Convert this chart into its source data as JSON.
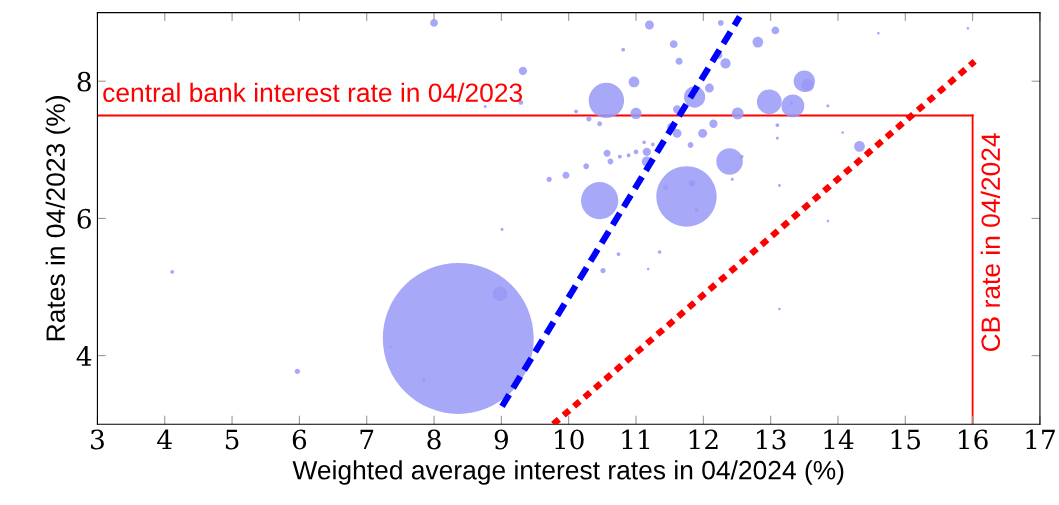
{
  "chart_data": {
    "type": "bubble",
    "xlabel": "Weighted average interest rates in 04/2024 (%)",
    "ylabel": "Rates in 04/2023 (%)",
    "xlim": [
      3,
      17
    ],
    "ylim": [
      3,
      9
    ],
    "xticks": [
      3,
      4,
      5,
      6,
      7,
      8,
      9,
      10,
      11,
      12,
      13,
      14,
      15,
      16,
      17
    ],
    "yticks": [
      4,
      6,
      8
    ],
    "grid": false,
    "ref_lines": [
      {
        "axis": "y",
        "value": 7.5,
        "label": "central bank interest rate in 04/2023",
        "color": "#ff0000",
        "line_style": "solid"
      },
      {
        "axis": "x",
        "value": 16,
        "label": "CB rate in 04/2024",
        "color": "#ff0000",
        "line_style": "solid"
      }
    ],
    "series": [
      {
        "color": "#9999f7",
        "x": [
          8.36,
          11.75,
          10.46,
          10.56,
          12.39,
          12.98,
          13.33,
          13.5,
          13.55,
          11.87,
          8.98,
          12.51,
          11.2,
          11.56,
          11.64,
          12.81,
          13.07,
          12.26,
          12.33,
          12.23,
          12.09,
          10.97,
          11.0,
          11.61,
          12.15,
          11.99,
          11.53,
          11.61,
          11.81,
          11.16,
          11.16,
          10.57,
          10.62,
          10.26,
          9.96,
          9.71,
          14.32,
          9.32,
          9.29,
          8.0,
          10.51,
          10.74,
          11.35,
          11.83,
          11.44,
          11.9,
          13.1,
          13.1,
          13.13,
          13.85,
          13.31,
          12.57,
          12.43,
          10.89,
          10.76,
          11.0,
          11.25,
          11.12,
          10.46,
          10.3,
          10.11,
          10.81,
          14.6,
          13.85,
          14.07,
          8.76,
          9.01,
          11.18,
          5.97,
          4.11,
          7.36,
          7.85,
          13.13,
          15.93
        ],
        "values": [
          4.25,
          6.32,
          6.26,
          7.72,
          6.83,
          7.7,
          7.64,
          8.0,
          7.94,
          7.77,
          4.9,
          7.53,
          8.82,
          8.54,
          8.29,
          8.57,
          8.74,
          8.85,
          8.26,
          8.38,
          7.9,
          7.99,
          7.53,
          7.59,
          7.38,
          7.24,
          7.33,
          7.24,
          7.07,
          6.97,
          6.83,
          6.95,
          6.83,
          6.76,
          6.63,
          6.57,
          7.05,
          8.15,
          7.69,
          8.85,
          5.24,
          5.48,
          5.51,
          6.51,
          6.45,
          6.12,
          7.36,
          7.17,
          6.48,
          7.64,
          7.68,
          6.9,
          6.57,
          6.92,
          6.9,
          6.97,
          7.08,
          7.11,
          7.38,
          7.45,
          7.56,
          8.46,
          8.7,
          5.96,
          7.25,
          7.63,
          5.84,
          5.26,
          3.77,
          5.22,
          4.13,
          3.64,
          4.68,
          8.77
        ],
        "sizes": [
          1,
          0.16,
          0.061,
          0.055,
          0.031,
          0.027,
          0.023,
          0.02,
          0.0068,
          0.02,
          0.0089,
          0.0062,
          0.0035,
          0.0026,
          0.0022,
          0.005,
          0.0026,
          0.0015,
          0.0045,
          0.0022,
          0.0035,
          0.005,
          0.0055,
          0.003,
          0.003,
          0.0035,
          0.0035,
          0.0035,
          0.0015,
          0.003,
          0.0045,
          0.0022,
          0.0015,
          0.0015,
          0.0022,
          0.0012,
          0.005,
          0.003,
          0.001,
          0.0026,
          0.0012,
          0.0006,
          0.0006,
          0.0019,
          0.001,
          0.0007,
          0.0006,
          0.0004,
          0.0004,
          0.0004,
          0.0006,
          0.0006,
          0.0004,
          0.0007,
          0.0007,
          0.001,
          0.0006,
          0.0006,
          0.001,
          0.0012,
          0.0007,
          0.0006,
          0.0003,
          0.0003,
          0.0003,
          0.0004,
          0.0004,
          0.0003,
          0.0012,
          0.0006,
          0.0003,
          0.0006,
          0.0003,
          0.0003
        ]
      },
      {
        "type": "line",
        "color": "#0000ff",
        "line_style": "dashed",
        "x": [
          9.01,
          12.54
        ],
        "values": [
          3.26,
          8.94
        ]
      },
      {
        "type": "line",
        "color": "#ff0000",
        "line_style": "dotted",
        "x": [
          9.77,
          16.03
        ],
        "values": [
          3.0,
          8.29
        ]
      }
    ]
  }
}
